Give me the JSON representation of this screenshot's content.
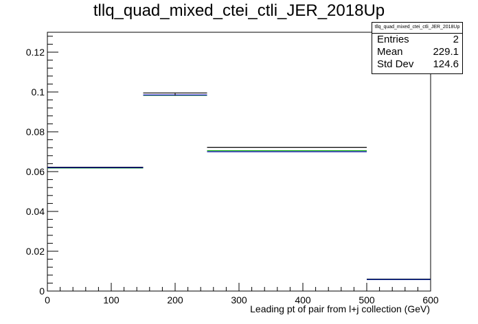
{
  "chart_data": {
    "type": "line",
    "title": "tllq_quad_mixed_ctei_ctli_JER_2018Up",
    "xlabel": "Leading pt of pair from l+j collection (GeV)",
    "ylabel": "",
    "xlim": [
      0,
      600
    ],
    "ylim": [
      0,
      0.13
    ],
    "x_ticks": [
      "0",
      "100",
      "200",
      "300",
      "400",
      "500",
      "600"
    ],
    "y_ticks": [
      "0",
      "0.02",
      "0.04",
      "0.06",
      "0.08",
      "0.1",
      "0.12"
    ],
    "bin_edges": [
      0,
      150,
      250,
      500,
      600
    ],
    "series": [
      {
        "color": "#000000",
        "values": [
          0.0622,
          0.0995,
          0.0722,
          0.006
        ]
      },
      {
        "color": "#00aa00",
        "values": [
          0.0618,
          0.0983,
          0.0705,
          0.0058
        ]
      },
      {
        "color": "#0000aa",
        "values": [
          0.062,
          0.0985,
          0.07,
          0.0058
        ]
      }
    ],
    "grid": false,
    "legend": "none"
  },
  "stats": {
    "title": "tllq_quad_mixed_ctei_ctli_JER_2018Up",
    "entries_label": "Entries",
    "entries_value": "2",
    "mean_label": "Mean",
    "mean_value": "229.1",
    "stddev_label": "Std Dev",
    "stddev_value": "124.6"
  }
}
